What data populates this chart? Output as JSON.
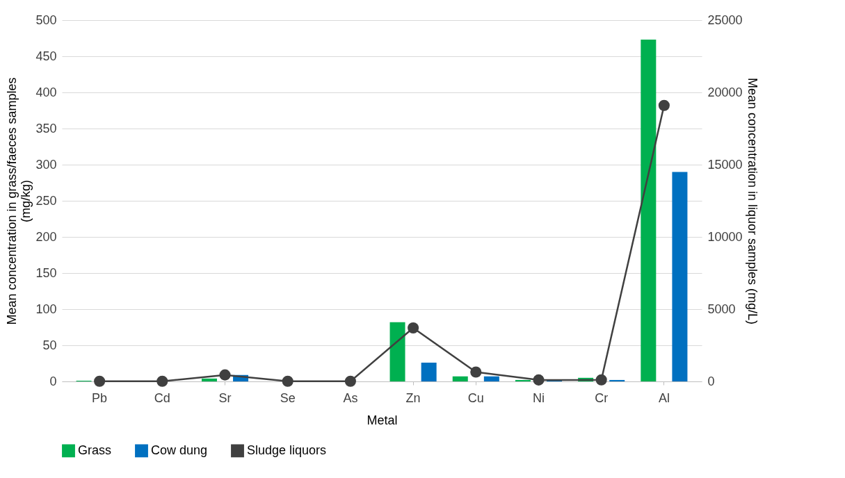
{
  "chart_data": {
    "type": "bar",
    "xlabel": "Metal",
    "ylabel": "Mean concentration in grass/faeces samples (mg/kg)",
    "y2label": "Mean concentration in liquor samples (mg/L)",
    "categories": [
      "Pb",
      "Cd",
      "Sr",
      "Se",
      "As",
      "Zn",
      "Cu",
      "Ni",
      "Cr",
      "Al"
    ],
    "series": [
      {
        "name": "Grass",
        "color": "#00b050",
        "values": [
          1,
          0,
          4,
          0,
          0,
          82,
          7,
          2,
          5,
          473
        ]
      },
      {
        "name": "Cow dung",
        "color": "#0070c0",
        "values": [
          0,
          0,
          9,
          0,
          0,
          26,
          7,
          1,
          2,
          290
        ]
      },
      {
        "name": "Sludge liquors",
        "type": "line",
        "axis": "y2",
        "color": "#404040",
        "values": [
          10,
          10,
          450,
          10,
          10,
          3700,
          650,
          100,
          110,
          19100
        ]
      }
    ],
    "ylim": [
      0,
      500
    ],
    "yticks": [
      0,
      50,
      100,
      150,
      200,
      250,
      300,
      350,
      400,
      450,
      500
    ],
    "y2lim": [
      0,
      25000
    ],
    "y2ticks": [
      0,
      5000,
      10000,
      15000,
      20000,
      25000
    ],
    "grid": "y",
    "legend": "bottom",
    "marker": "circle"
  }
}
